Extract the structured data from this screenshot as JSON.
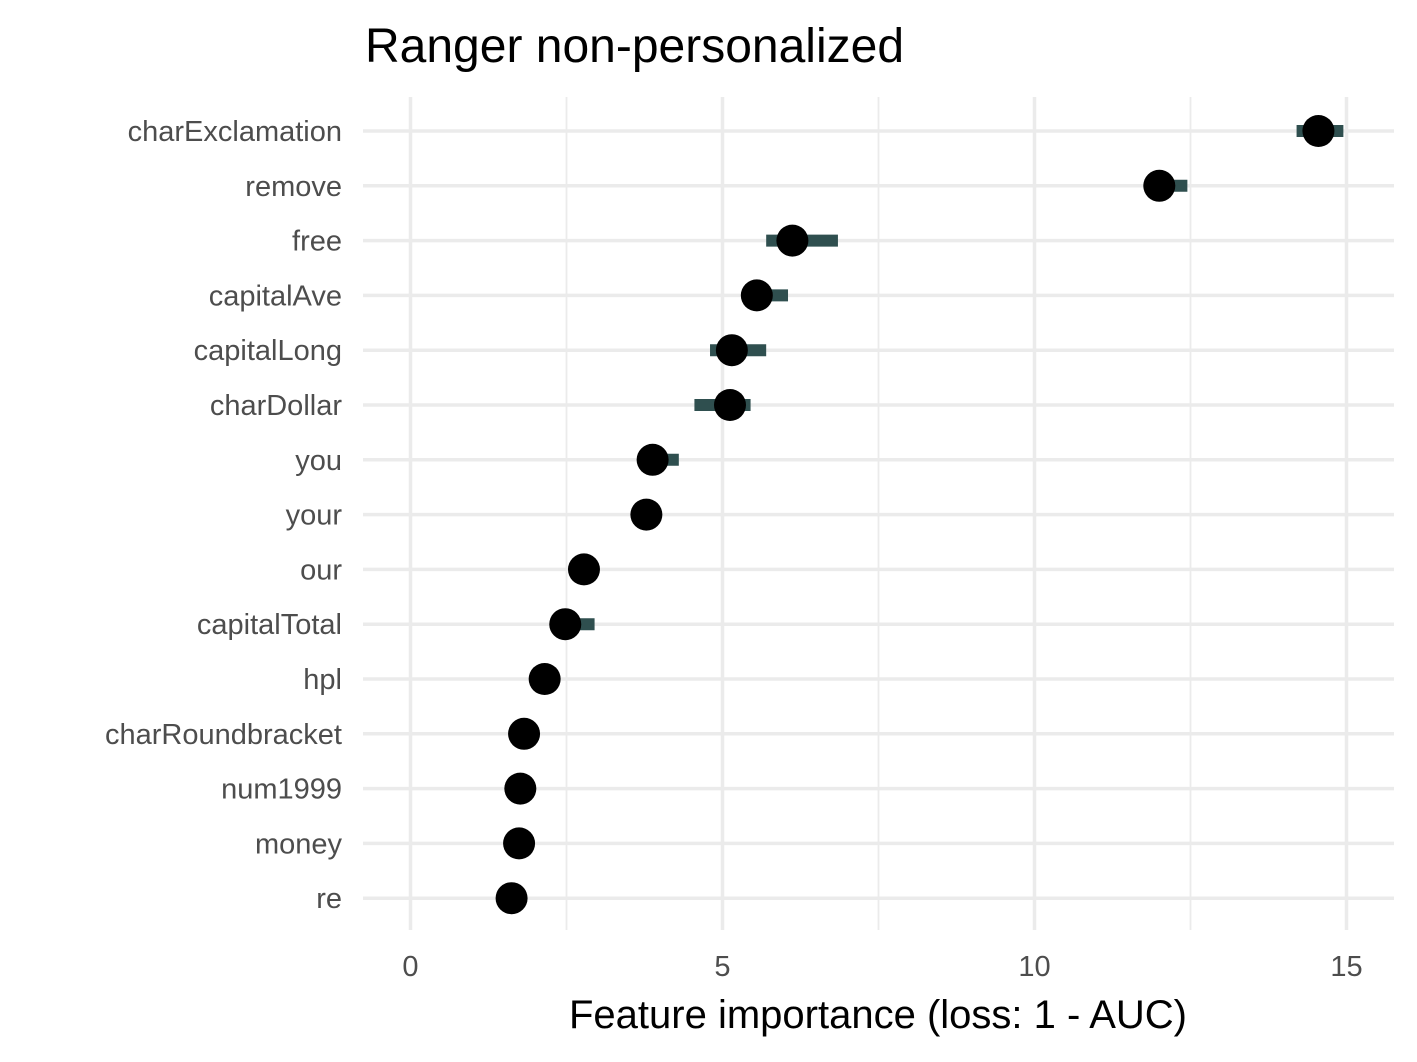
{
  "chart_data": {
    "type": "scatter",
    "title": "Ranger non-personalized",
    "xlabel": "Feature importance (loss: 1 - AUC)",
    "ylabel": "",
    "xlim": [
      -0.75,
      15.75
    ],
    "x_ticks": [
      0,
      5,
      10,
      15
    ],
    "x_tick_labels": [
      "0",
      "5",
      "10",
      "15"
    ],
    "grid": true,
    "legend": "none",
    "colors": {
      "point": "#000000",
      "interval": "#2f4f4f",
      "grid": "#ebebeb",
      "tick_text": "#4d4d4d"
    },
    "categories": [
      "charExclamation",
      "remove",
      "free",
      "capitalAve",
      "capitalLong",
      "charDollar",
      "you",
      "your",
      "our",
      "capitalTotal",
      "hpl",
      "charRoundbracket",
      "num1999",
      "money",
      "re"
    ],
    "values": [
      14.55,
      12.0,
      6.12,
      5.55,
      5.15,
      5.12,
      3.88,
      3.78,
      2.78,
      2.48,
      2.15,
      1.82,
      1.76,
      1.74,
      1.62
    ],
    "interval_low": [
      14.2,
      12.0,
      5.7,
      5.55,
      4.8,
      4.55,
      3.88,
      3.55,
      2.78,
      2.48,
      1.95,
      1.82,
      1.76,
      1.74,
      1.62
    ],
    "interval_high": [
      14.95,
      12.45,
      6.85,
      6.05,
      5.7,
      5.45,
      4.3,
      3.78,
      2.78,
      2.95,
      2.15,
      1.82,
      1.76,
      1.74,
      1.62
    ]
  }
}
